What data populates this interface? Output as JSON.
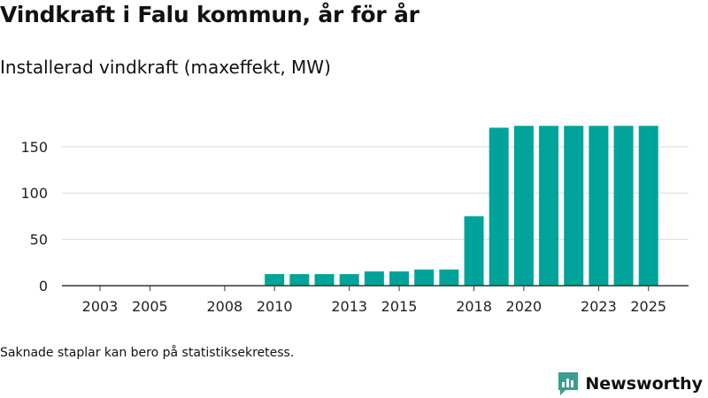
{
  "header": {
    "title": "Vindkraft i Falu kommun, år för år",
    "subtitle": "Installerad vindkraft (maxeffekt, MW)"
  },
  "footer": {
    "note": "Saknade staplar kan bero på statistiksekretess.",
    "brand": "Newsworthy",
    "brand_icon": "newsworthy-logo-icon"
  },
  "colors": {
    "bar": "#00a39a",
    "brand": "#3a9d90",
    "grid": "#d9d9d9",
    "axis": "#333333"
  },
  "chart_data": {
    "type": "bar",
    "title": "Vindkraft i Falu kommun, år för år",
    "ylabel": "Installerad vindkraft (maxeffekt, MW)",
    "xlabel": "",
    "ylim": [
      0,
      175
    ],
    "yticks": [
      0,
      50,
      100,
      150
    ],
    "xticks": [
      2003,
      2005,
      2008,
      2010,
      2013,
      2015,
      2018,
      2020,
      2023,
      2025
    ],
    "x": [
      2003,
      2004,
      2005,
      2006,
      2007,
      2008,
      2009,
      2010,
      2011,
      2012,
      2013,
      2014,
      2015,
      2016,
      2017,
      2018,
      2019,
      2020,
      2021,
      2022,
      2023,
      2024,
      2025
    ],
    "values": [
      null,
      null,
      null,
      null,
      null,
      null,
      null,
      12.5,
      12.5,
      12.5,
      12.5,
      15.5,
      15.5,
      17.5,
      17.5,
      75,
      170.5,
      172.5,
      172.5,
      172.5,
      172.5,
      172.5,
      172.5
    ],
    "grid": true
  }
}
